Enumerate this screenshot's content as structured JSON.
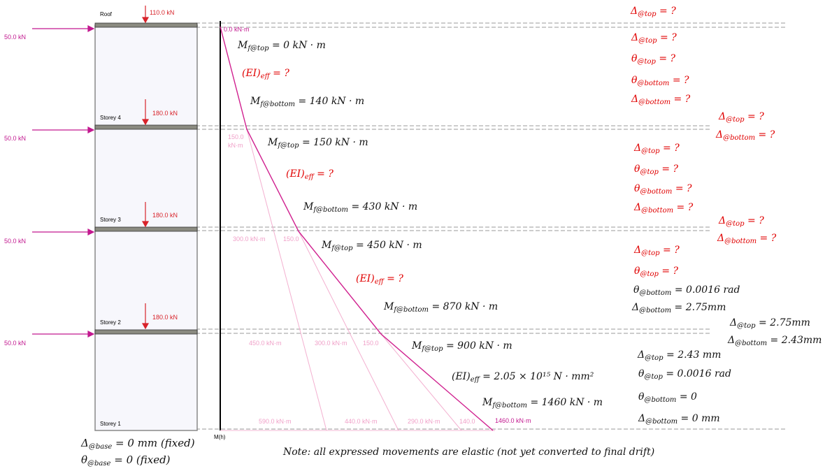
{
  "storeys": [
    {
      "id": "roof",
      "label": "Roof",
      "gravity": "110.0 kN",
      "lateral": "50.0 kN"
    },
    {
      "id": "s4",
      "label": "Storey 4",
      "gravity": "180.0 kN",
      "lateral": "50.0 kN"
    },
    {
      "id": "s3",
      "label": "Storey 3",
      "gravity": "180.0 kN",
      "lateral": "50.0 kN"
    },
    {
      "id": "s2",
      "label": "Storey 2",
      "gravity": "180.0 kN",
      "lateral": "50.0 kN"
    },
    {
      "id": "s1",
      "label": "Storey 1"
    }
  ],
  "diagram": {
    "axis_label": "M(h)",
    "top_moment": "0.0 kN·m",
    "base_moment": "1460.0 kN·m",
    "pink_labels": [
      "150.0",
      "kN·m",
      "300.0 kN·m",
      "150.0",
      "450.0 kN·m",
      "300.0 kN·m",
      "150.0",
      "590.0 kN·m",
      "440.0 kN·m",
      "290.0 kN·m",
      "140.0"
    ]
  },
  "base": {
    "delta": "= 0 mm (fixed)",
    "theta": "= 0 (fixed)"
  },
  "mid_equations": [
    {
      "sym": "M",
      "sub": "f@top",
      "rhs": " = 0 kN · m",
      "color": "black"
    },
    {
      "sym": "(EI)",
      "sub": "eff",
      "rhs": " = ?",
      "color": "red"
    },
    {
      "sym": "M",
      "sub": "f@bottom",
      "rhs": " = 140 kN · m",
      "color": "black"
    },
    {
      "sym": "M",
      "sub": "f@top",
      "rhs": " = 150 kN · m",
      "color": "black"
    },
    {
      "sym": "(EI)",
      "sub": "eff",
      "rhs": " = ?",
      "color": "red"
    },
    {
      "sym": "M",
      "sub": "f@bottom",
      "rhs": " = 430 kN · m",
      "color": "black"
    },
    {
      "sym": "M",
      "sub": "f@top",
      "rhs": " = 450 kN · m",
      "color": "black"
    },
    {
      "sym": "(EI)",
      "sub": "eff",
      "rhs": " = ?",
      "color": "red"
    },
    {
      "sym": "M",
      "sub": "f@bottom",
      "rhs": " = 870 kN · m",
      "color": "black"
    },
    {
      "sym": "M",
      "sub": "f@top",
      "rhs": " = 900 kN · m",
      "color": "black"
    },
    {
      "sym": "(EI)",
      "sub": "eff",
      "rhs": " = 2.05 × 10¹⁵ N · mm²",
      "color": "black"
    },
    {
      "sym": "M",
      "sub": "f@bottom",
      "rhs": " = 1460 kN · m",
      "color": "black"
    }
  ],
  "right_equations": [
    {
      "sym": "Δ",
      "sub": "@top",
      "rhs": " = ?",
      "color": "red"
    },
    {
      "sym": "Δ",
      "sub": "@top",
      "rhs": " = ?",
      "color": "red"
    },
    {
      "sym": "θ",
      "sub": "@top",
      "rhs": " = ?",
      "color": "red"
    },
    {
      "sym": "θ",
      "sub": "@bottom",
      "rhs": " = ?",
      "color": "red"
    },
    {
      "sym": "Δ",
      "sub": "@bottom",
      "rhs": " = ?",
      "color": "red"
    },
    {
      "sym": "Δ",
      "sub": "@top",
      "rhs": " = ?",
      "color": "red"
    },
    {
      "sym": "Δ",
      "sub": "@bottom",
      "rhs": " = ?",
      "color": "red"
    },
    {
      "sym": "Δ",
      "sub": "@top",
      "rhs": " = ?",
      "color": "red"
    },
    {
      "sym": "θ",
      "sub": "@top",
      "rhs": " = ?",
      "color": "red"
    },
    {
      "sym": "θ",
      "sub": "@bottom",
      "rhs": " = ?",
      "color": "red"
    },
    {
      "sym": "Δ",
      "sub": "@bottom",
      "rhs": " = ?",
      "color": "red"
    },
    {
      "sym": "Δ",
      "sub": "@top",
      "rhs": " = ?",
      "color": "red"
    },
    {
      "sym": "Δ",
      "sub": "@bottom",
      "rhs": " = ?",
      "color": "red"
    },
    {
      "sym": "Δ",
      "sub": "@top",
      "rhs": " = ?",
      "color": "red"
    },
    {
      "sym": "θ",
      "sub": "@top",
      "rhs": " = ?",
      "color": "red"
    },
    {
      "sym": "θ",
      "sub": "@bottom",
      "rhs": " = 0.0016 rad",
      "color": "black"
    },
    {
      "sym": "Δ",
      "sub": "@bottom",
      "rhs": " = 2.75mm",
      "color": "black"
    },
    {
      "sym": "Δ",
      "sub": "@top",
      "rhs": " = 2.75mm",
      "color": "black"
    },
    {
      "sym": "Δ",
      "sub": "@bottom",
      "rhs": " = 2.43mm",
      "color": "black"
    },
    {
      "sym": "Δ",
      "sub": "@top",
      "rhs": " = 2.43 mm",
      "color": "black"
    },
    {
      "sym": "θ",
      "sub": "@top",
      "rhs": " = 0.0016 rad",
      "color": "black"
    },
    {
      "sym": "θ",
      "sub": "@bottom",
      "rhs": " = 0",
      "color": "black"
    },
    {
      "sym": "Δ",
      "sub": "@bottom",
      "rhs": " = 0 mm",
      "color": "black"
    }
  ],
  "note": "Note: all expressed movements are elastic (not yet converted to final drift)"
}
